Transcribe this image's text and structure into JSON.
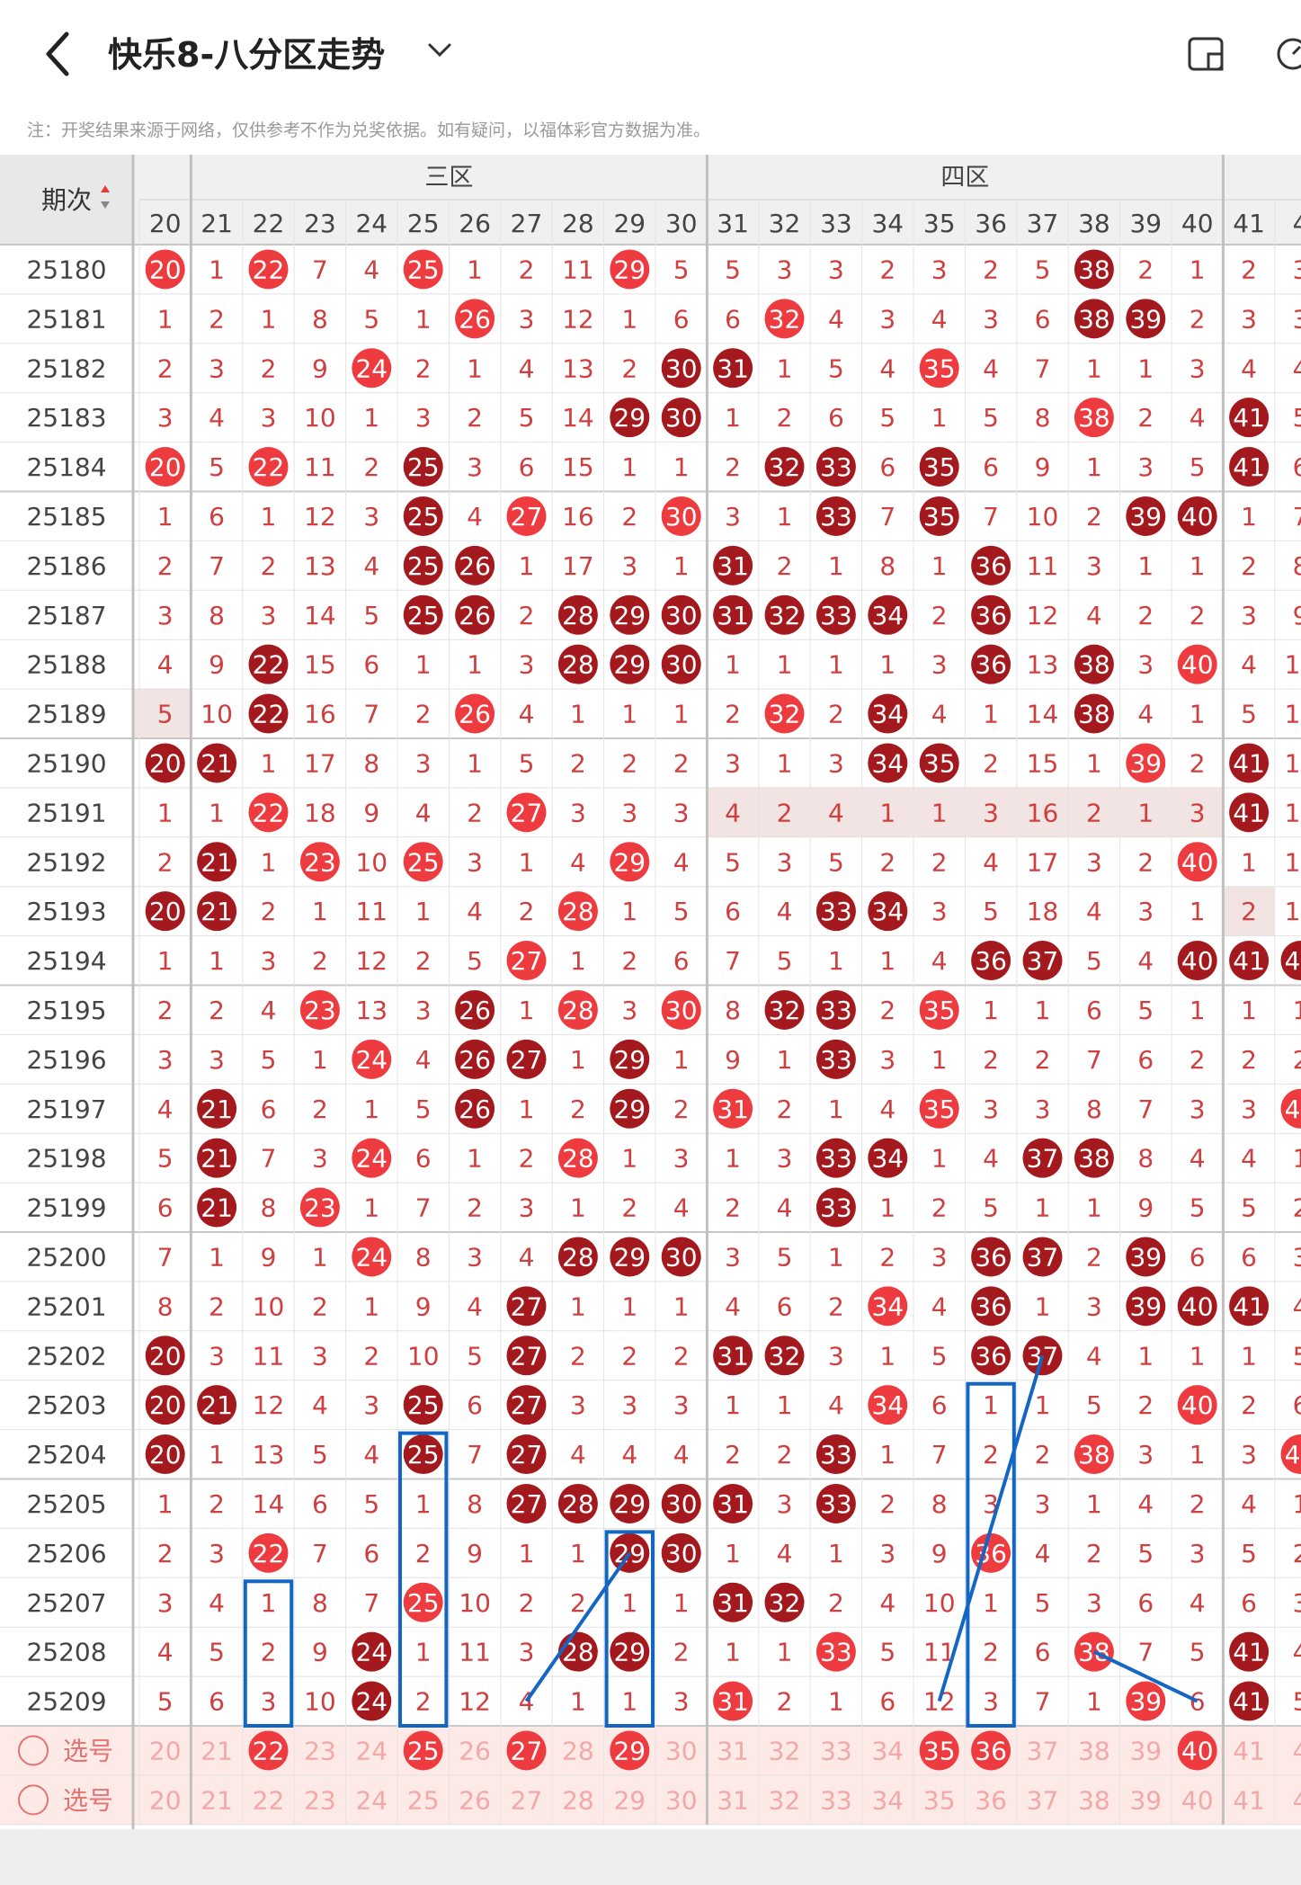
{
  "app": {
    "title": "快乐8-八分区走势",
    "note": "注：开奖结果来源于网络，仅供参考不作为兑奖依据。如有疑问，以福体彩官方数据为准。"
  },
  "table": {
    "period_header": "期次",
    "zones": [
      {
        "name": "三区",
        "from": 21,
        "to": 30
      },
      {
        "name": "四区",
        "from": 31,
        "to": 40
      }
    ],
    "columns": [
      "20",
      "21",
      "22",
      "23",
      "24",
      "25",
      "26",
      "27",
      "28",
      "29",
      "30",
      "31",
      "32",
      "33",
      "34",
      "35",
      "36",
      "37",
      "38",
      "39",
      "40",
      "41",
      "4"
    ],
    "rows": [
      {
        "period": "25180",
        "cells": [
          "20",
          "1",
          "22",
          "7",
          "4",
          "25",
          "1",
          "2",
          "11",
          "29",
          "5",
          "5",
          "3",
          "3",
          "2",
          "3",
          "2",
          "5",
          "38",
          "2",
          "1",
          "2",
          "3"
        ],
        "hits": [
          0,
          2,
          5,
          9,
          18
        ]
      },
      {
        "period": "25181",
        "cells": [
          "1",
          "2",
          "1",
          "8",
          "5",
          "1",
          "26",
          "3",
          "12",
          "1",
          "6",
          "6",
          "32",
          "4",
          "3",
          "4",
          "3",
          "6",
          "38",
          "39",
          "2",
          "3",
          "3"
        ],
        "hits": [
          6,
          12,
          18,
          19
        ]
      },
      {
        "period": "25182",
        "cells": [
          "2",
          "3",
          "2",
          "9",
          "24",
          "2",
          "1",
          "4",
          "13",
          "2",
          "30",
          "31",
          "1",
          "5",
          "4",
          "35",
          "4",
          "7",
          "1",
          "1",
          "3",
          "4",
          "4"
        ],
        "hits": [
          4,
          10,
          11,
          15
        ]
      },
      {
        "period": "25183",
        "cells": [
          "3",
          "4",
          "3",
          "10",
          "1",
          "3",
          "2",
          "5",
          "14",
          "29",
          "30",
          "1",
          "2",
          "6",
          "5",
          "1",
          "5",
          "8",
          "38",
          "2",
          "4",
          "41",
          "5"
        ],
        "hits": [
          9,
          10,
          18,
          21
        ]
      },
      {
        "period": "25184",
        "cells": [
          "20",
          "5",
          "22",
          "11",
          "2",
          "25",
          "3",
          "6",
          "15",
          "1",
          "1",
          "2",
          "32",
          "33",
          "6",
          "35",
          "6",
          "9",
          "1",
          "3",
          "5",
          "41",
          "6"
        ],
        "hits": [
          0,
          2,
          5,
          12,
          13,
          15,
          21
        ]
      },
      {
        "period": "25185",
        "cells": [
          "1",
          "6",
          "1",
          "12",
          "3",
          "25",
          "4",
          "27",
          "16",
          "2",
          "30",
          "3",
          "1",
          "33",
          "7",
          "35",
          "7",
          "10",
          "2",
          "39",
          "40",
          "1",
          "7"
        ],
        "hits": [
          5,
          7,
          10,
          13,
          15,
          19,
          20
        ]
      },
      {
        "period": "25186",
        "cells": [
          "2",
          "7",
          "2",
          "13",
          "4",
          "25",
          "26",
          "1",
          "17",
          "3",
          "1",
          "31",
          "2",
          "1",
          "8",
          "1",
          "36",
          "11",
          "3",
          "1",
          "1",
          "2",
          "8"
        ],
        "hits": [
          5,
          6,
          11,
          16
        ]
      },
      {
        "period": "25187",
        "cells": [
          "3",
          "8",
          "3",
          "14",
          "5",
          "25",
          "26",
          "2",
          "28",
          "29",
          "30",
          "31",
          "32",
          "33",
          "34",
          "2",
          "36",
          "12",
          "4",
          "2",
          "2",
          "3",
          "9"
        ],
        "hits": [
          5,
          6,
          8,
          9,
          10,
          11,
          12,
          13,
          14,
          16
        ]
      },
      {
        "period": "25188",
        "cells": [
          "4",
          "9",
          "22",
          "15",
          "6",
          "1",
          "1",
          "3",
          "28",
          "29",
          "30",
          "1",
          "1",
          "1",
          "1",
          "3",
          "36",
          "13",
          "38",
          "3",
          "40",
          "4",
          "10"
        ],
        "hits": [
          2,
          8,
          9,
          10,
          16,
          18,
          20
        ]
      },
      {
        "period": "25189",
        "cells": [
          "5",
          "10",
          "22",
          "16",
          "7",
          "2",
          "26",
          "4",
          "1",
          "1",
          "1",
          "2",
          "32",
          "2",
          "34",
          "4",
          "1",
          "14",
          "38",
          "4",
          "1",
          "5",
          "11"
        ],
        "hits": [
          2,
          6,
          12,
          14,
          18
        ]
      },
      {
        "period": "25190",
        "cells": [
          "20",
          "21",
          "1",
          "17",
          "8",
          "3",
          "1",
          "5",
          "2",
          "2",
          "2",
          "3",
          "1",
          "3",
          "34",
          "35",
          "2",
          "15",
          "1",
          "39",
          "2",
          "41",
          "12"
        ],
        "hits": [
          0,
          1,
          14,
          15,
          19,
          21
        ]
      },
      {
        "period": "25191",
        "cells": [
          "1",
          "1",
          "22",
          "18",
          "9",
          "4",
          "2",
          "27",
          "3",
          "3",
          "3",
          "4",
          "2",
          "4",
          "1",
          "1",
          "3",
          "16",
          "2",
          "1",
          "3",
          "41",
          "13"
        ],
        "hits": [
          2,
          7,
          21
        ]
      },
      {
        "period": "25192",
        "cells": [
          "2",
          "21",
          "1",
          "23",
          "10",
          "25",
          "3",
          "1",
          "4",
          "29",
          "4",
          "5",
          "3",
          "5",
          "2",
          "2",
          "4",
          "17",
          "3",
          "2",
          "40",
          "1",
          "14"
        ],
        "hits": [
          1,
          3,
          5,
          9,
          20
        ]
      },
      {
        "period": "25193",
        "cells": [
          "20",
          "21",
          "2",
          "1",
          "11",
          "1",
          "4",
          "2",
          "28",
          "1",
          "5",
          "6",
          "4",
          "33",
          "34",
          "3",
          "5",
          "18",
          "4",
          "3",
          "1",
          "2",
          "15"
        ],
        "hits": [
          0,
          1,
          8,
          13,
          14
        ]
      },
      {
        "period": "25194",
        "cells": [
          "1",
          "1",
          "3",
          "2",
          "12",
          "2",
          "5",
          "27",
          "1",
          "2",
          "6",
          "7",
          "5",
          "1",
          "1",
          "4",
          "36",
          "37",
          "5",
          "4",
          "40",
          "41",
          "42"
        ],
        "hits": [
          7,
          16,
          17,
          20,
          21,
          22
        ]
      },
      {
        "period": "25195",
        "cells": [
          "2",
          "2",
          "4",
          "23",
          "13",
          "3",
          "26",
          "1",
          "28",
          "3",
          "30",
          "8",
          "32",
          "33",
          "2",
          "35",
          "1",
          "1",
          "6",
          "5",
          "1",
          "1",
          "1"
        ],
        "hits": [
          3,
          6,
          8,
          10,
          12,
          13,
          15
        ]
      },
      {
        "period": "25196",
        "cells": [
          "3",
          "3",
          "5",
          "1",
          "24",
          "4",
          "26",
          "27",
          "1",
          "29",
          "1",
          "9",
          "1",
          "33",
          "3",
          "1",
          "2",
          "2",
          "7",
          "6",
          "2",
          "2",
          "2"
        ],
        "hits": [
          4,
          6,
          7,
          9,
          13
        ]
      },
      {
        "period": "25197",
        "cells": [
          "4",
          "21",
          "6",
          "2",
          "1",
          "5",
          "26",
          "1",
          "2",
          "29",
          "2",
          "31",
          "2",
          "1",
          "4",
          "35",
          "3",
          "3",
          "8",
          "7",
          "3",
          "3",
          "42"
        ],
        "hits": [
          1,
          6,
          9,
          11,
          15,
          22
        ]
      },
      {
        "period": "25198",
        "cells": [
          "5",
          "21",
          "7",
          "3",
          "24",
          "6",
          "1",
          "2",
          "28",
          "1",
          "3",
          "1",
          "3",
          "33",
          "34",
          "1",
          "4",
          "37",
          "38",
          "8",
          "4",
          "4",
          "1"
        ],
        "hits": [
          1,
          4,
          8,
          13,
          14,
          17,
          18
        ]
      },
      {
        "period": "25199",
        "cells": [
          "6",
          "21",
          "8",
          "23",
          "1",
          "7",
          "2",
          "3",
          "1",
          "2",
          "4",
          "2",
          "4",
          "33",
          "1",
          "2",
          "5",
          "1",
          "1",
          "9",
          "5",
          "5",
          "2"
        ],
        "hits": [
          1,
          3,
          13
        ]
      },
      {
        "period": "25200",
        "cells": [
          "7",
          "1",
          "9",
          "1",
          "24",
          "8",
          "3",
          "4",
          "28",
          "29",
          "30",
          "3",
          "5",
          "1",
          "2",
          "3",
          "36",
          "37",
          "2",
          "39",
          "6",
          "6",
          "3"
        ],
        "hits": [
          4,
          8,
          9,
          10,
          16,
          17,
          19
        ]
      },
      {
        "period": "25201",
        "cells": [
          "8",
          "2",
          "10",
          "2",
          "1",
          "9",
          "4",
          "27",
          "1",
          "1",
          "1",
          "4",
          "6",
          "2",
          "34",
          "4",
          "36",
          "1",
          "3",
          "39",
          "40",
          "41",
          "4"
        ],
        "hits": [
          7,
          14,
          16,
          19,
          20,
          21
        ]
      },
      {
        "period": "25202",
        "cells": [
          "20",
          "3",
          "11",
          "3",
          "2",
          "10",
          "5",
          "27",
          "2",
          "2",
          "2",
          "31",
          "32",
          "3",
          "1",
          "5",
          "36",
          "37",
          "4",
          "1",
          "1",
          "1",
          "5"
        ],
        "hits": [
          0,
          7,
          11,
          12,
          16,
          17
        ]
      },
      {
        "period": "25203",
        "cells": [
          "20",
          "21",
          "12",
          "4",
          "3",
          "25",
          "6",
          "27",
          "3",
          "3",
          "3",
          "1",
          "1",
          "4",
          "34",
          "6",
          "1",
          "1",
          "5",
          "2",
          "40",
          "2",
          "6"
        ],
        "hits": [
          0,
          1,
          5,
          7,
          14,
          20
        ]
      },
      {
        "period": "25204",
        "cells": [
          "20",
          "1",
          "13",
          "5",
          "4",
          "25",
          "7",
          "27",
          "4",
          "4",
          "4",
          "2",
          "2",
          "33",
          "1",
          "7",
          "2",
          "2",
          "38",
          "3",
          "1",
          "3",
          "42"
        ],
        "hits": [
          0,
          5,
          7,
          13,
          18,
          22
        ]
      },
      {
        "period": "25205",
        "cells": [
          "1",
          "2",
          "14",
          "6",
          "5",
          "1",
          "8",
          "27",
          "28",
          "29",
          "30",
          "31",
          "3",
          "33",
          "2",
          "8",
          "3",
          "3",
          "1",
          "4",
          "2",
          "4",
          "1"
        ],
        "hits": [
          7,
          8,
          9,
          10,
          11,
          13
        ]
      },
      {
        "period": "25206",
        "cells": [
          "2",
          "3",
          "22",
          "7",
          "6",
          "2",
          "9",
          "1",
          "1",
          "29",
          "30",
          "1",
          "4",
          "1",
          "3",
          "9",
          "36",
          "4",
          "2",
          "5",
          "3",
          "5",
          "2"
        ],
        "hits": [
          2,
          9,
          10,
          16
        ]
      },
      {
        "period": "25207",
        "cells": [
          "3",
          "4",
          "1",
          "8",
          "7",
          "25",
          "10",
          "2",
          "2",
          "1",
          "1",
          "31",
          "32",
          "2",
          "4",
          "10",
          "1",
          "5",
          "3",
          "6",
          "4",
          "6",
          "3"
        ],
        "hits": [
          5,
          11,
          12
        ]
      },
      {
        "period": "25208",
        "cells": [
          "4",
          "5",
          "2",
          "9",
          "24",
          "1",
          "11",
          "3",
          "28",
          "29",
          "2",
          "1",
          "1",
          "33",
          "5",
          "11",
          "2",
          "6",
          "38",
          "7",
          "5",
          "41",
          "4"
        ],
        "hits": [
          4,
          8,
          9,
          13,
          18,
          21
        ]
      },
      {
        "period": "25209",
        "cells": [
          "5",
          "6",
          "3",
          "10",
          "24",
          "2",
          "12",
          "4",
          "1",
          "1",
          "3",
          "31",
          "2",
          "1",
          "6",
          "12",
          "3",
          "7",
          "1",
          "39",
          "6",
          "41",
          "5"
        ],
        "hits": [
          4,
          11,
          19,
          21
        ]
      }
    ],
    "select_rows": [
      {
        "label": "选号",
        "cells": [
          "20",
          "21",
          "22",
          "23",
          "24",
          "25",
          "26",
          "27",
          "28",
          "29",
          "30",
          "31",
          "32",
          "33",
          "34",
          "35",
          "36",
          "37",
          "38",
          "39",
          "40",
          "41",
          "4"
        ],
        "picks": [
          2,
          5,
          7,
          9,
          15,
          16,
          20
        ]
      },
      {
        "label": "选号",
        "cells": [
          "20",
          "21",
          "22",
          "23",
          "24",
          "25",
          "26",
          "27",
          "28",
          "29",
          "30",
          "31",
          "32",
          "33",
          "34",
          "35",
          "36",
          "37",
          "38",
          "39",
          "40",
          "41",
          "4"
        ],
        "picks": []
      }
    ],
    "footer_zones": [
      {
        "name": "三区"
      },
      {
        "name": "四区"
      }
    ],
    "footer_period": "-"
  },
  "colors": {
    "hit": "#ee3b3f",
    "hit_dark": "#a3191d",
    "number": "#cf3f3f",
    "select_text": "#f2a8a8",
    "highlight": "#1466c4"
  }
}
